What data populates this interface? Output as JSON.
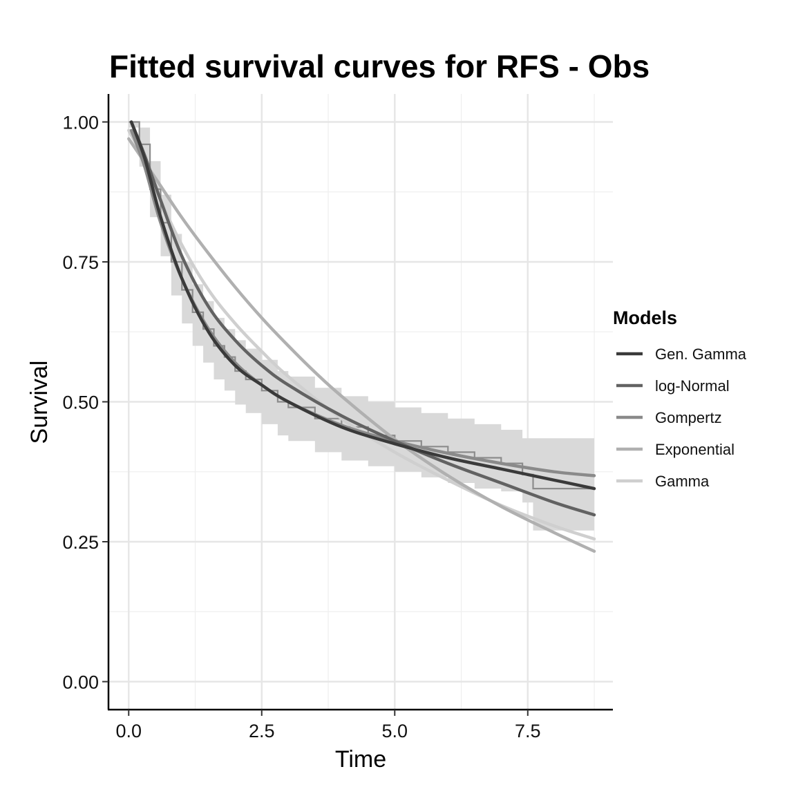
{
  "chart_data": {
    "type": "line",
    "title": "Fitted survival curves for RFS - Obs",
    "xlabel": "Time",
    "ylabel": "Survival",
    "xlim": [
      -0.38,
      9.1
    ],
    "ylim": [
      -0.05,
      1.05
    ],
    "x_ticks": [
      0.0,
      2.5,
      5.0,
      7.5
    ],
    "x_tick_labels": [
      "0.0",
      "2.5",
      "5.0",
      "7.5"
    ],
    "y_ticks": [
      0.0,
      0.25,
      0.5,
      0.75,
      1.0
    ],
    "y_tick_labels": [
      "0.00",
      "0.25",
      "0.50",
      "0.75",
      "1.00"
    ],
    "grid": true,
    "legend": {
      "title": "Models",
      "position": "right",
      "entries": [
        "Gen. Gamma",
        "log-Normal",
        "Gompertz",
        "Exponential",
        "Gamma"
      ]
    },
    "series": [
      {
        "name": "Gen. Gamma",
        "color": "#3a3a3a",
        "x": [
          0.05,
          0.3,
          0.6,
          1.0,
          1.5,
          2.0,
          2.5,
          3.0,
          4.0,
          5.0,
          6.0,
          7.0,
          8.0,
          8.75
        ],
        "y": [
          1.0,
          0.935,
          0.83,
          0.72,
          0.625,
          0.565,
          0.53,
          0.5,
          0.455,
          0.425,
          0.4,
          0.38,
          0.36,
          0.345
        ]
      },
      {
        "name": "log-Normal",
        "color": "#626262",
        "x": [
          0.05,
          0.3,
          0.6,
          1.0,
          1.5,
          2.0,
          2.5,
          3.0,
          4.0,
          5.0,
          6.0,
          7.0,
          8.0,
          8.75
        ],
        "y": [
          1.0,
          0.94,
          0.86,
          0.76,
          0.67,
          0.61,
          0.565,
          0.53,
          0.475,
          0.43,
          0.39,
          0.355,
          0.32,
          0.298
        ]
      },
      {
        "name": "Gompertz",
        "color": "#8a8a8a",
        "x": [
          0.05,
          0.3,
          0.6,
          1.0,
          1.5,
          2.0,
          2.5,
          3.0,
          4.0,
          5.0,
          6.0,
          7.0,
          8.0,
          8.75
        ],
        "y": [
          0.985,
          0.92,
          0.82,
          0.72,
          0.63,
          0.57,
          0.53,
          0.5,
          0.458,
          0.43,
          0.408,
          0.39,
          0.375,
          0.368
        ]
      },
      {
        "name": "Exponential",
        "color": "#b0b0b0",
        "x": [
          0.0,
          0.5,
          1.0,
          1.5,
          2.0,
          2.5,
          3.0,
          3.5,
          4.0,
          5.0,
          6.0,
          7.0,
          8.0,
          8.75
        ],
        "y": [
          0.97,
          0.9,
          0.829,
          0.765,
          0.705,
          0.65,
          0.6,
          0.553,
          0.51,
          0.433,
          0.368,
          0.313,
          0.266,
          0.233
        ]
      },
      {
        "name": "Gamma",
        "color": "#cfcfcf",
        "x": [
          0.0,
          0.3,
          0.6,
          1.0,
          1.5,
          2.0,
          2.5,
          3.0,
          4.0,
          5.0,
          6.0,
          7.0,
          8.0,
          8.75
        ],
        "y": [
          0.985,
          0.93,
          0.86,
          0.78,
          0.7,
          0.64,
          0.59,
          0.545,
          0.47,
          0.41,
          0.36,
          0.315,
          0.278,
          0.255
        ]
      }
    ],
    "kaplan_meier": {
      "color": "#8c8c8c",
      "x": [
        0.0,
        0.2,
        0.4,
        0.6,
        0.8,
        1.0,
        1.2,
        1.4,
        1.6,
        1.8,
        2.0,
        2.2,
        2.5,
        2.8,
        3.0,
        3.5,
        4.0,
        4.5,
        5.0,
        5.5,
        6.0,
        6.5,
        7.0,
        7.4,
        7.6,
        8.75
      ],
      "y": [
        1.0,
        0.96,
        0.88,
        0.82,
        0.75,
        0.7,
        0.66,
        0.63,
        0.6,
        0.58,
        0.555,
        0.54,
        0.52,
        0.5,
        0.49,
        0.47,
        0.455,
        0.44,
        0.43,
        0.42,
        0.41,
        0.4,
        0.39,
        0.37,
        0.345,
        0.345
      ]
    },
    "confidence_band": {
      "color": "#d9d9d9",
      "x": [
        0.0,
        0.2,
        0.4,
        0.6,
        0.8,
        1.0,
        1.2,
        1.4,
        1.6,
        1.8,
        2.0,
        2.2,
        2.5,
        2.8,
        3.0,
        3.5,
        4.0,
        4.5,
        5.0,
        5.5,
        6.0,
        6.5,
        7.0,
        7.4,
        7.6,
        8.75
      ],
      "lower": [
        0.99,
        0.92,
        0.83,
        0.76,
        0.69,
        0.64,
        0.6,
        0.57,
        0.54,
        0.52,
        0.495,
        0.48,
        0.46,
        0.44,
        0.43,
        0.41,
        0.395,
        0.385,
        0.375,
        0.365,
        0.355,
        0.345,
        0.34,
        0.32,
        0.27,
        0.27
      ],
      "upper": [
        1.0,
        0.99,
        0.93,
        0.87,
        0.8,
        0.75,
        0.71,
        0.68,
        0.65,
        0.63,
        0.61,
        0.595,
        0.575,
        0.555,
        0.545,
        0.525,
        0.51,
        0.5,
        0.49,
        0.48,
        0.47,
        0.46,
        0.45,
        0.435,
        0.435,
        0.435
      ]
    }
  }
}
